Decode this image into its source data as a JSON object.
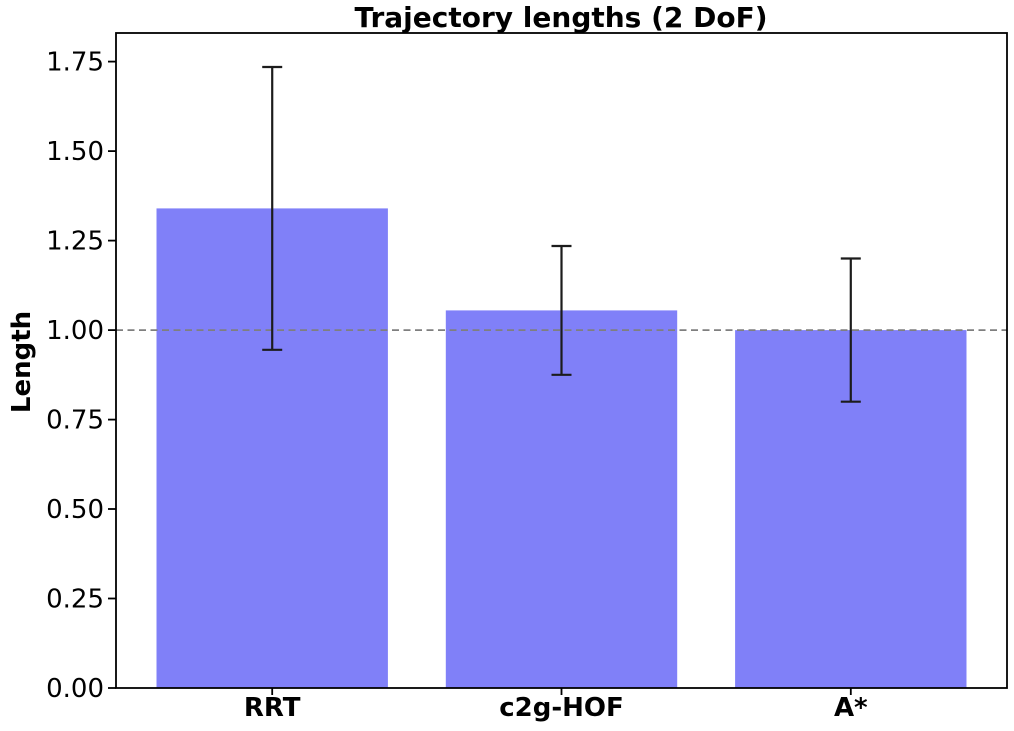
{
  "chart_data": {
    "type": "bar",
    "title": "Trajectory lengths (2 DoF)",
    "xlabel": "",
    "ylabel": "Length",
    "categories": [
      "RRT",
      "c2g-HOF",
      "A*"
    ],
    "values": [
      1.34,
      1.055,
      1.0
    ],
    "errors": [
      0.395,
      0.18,
      0.2
    ],
    "yticks": [
      0,
      0.25,
      0.5,
      0.75,
      1.0,
      1.25,
      1.5,
      1.75
    ],
    "ytick_labels": [
      "0.00",
      "0.25",
      "0.50",
      "0.75",
      "1.00",
      "1.25",
      "1.50",
      "1.75"
    ],
    "ylim": [
      0,
      1.83
    ],
    "reference_line": {
      "y": 1.0,
      "style": "dashed",
      "color": "#7f7f7f"
    },
    "colors": {
      "bar": "#8080F8",
      "error_bar": "#1c1c1c",
      "axis": "#000000",
      "text": "#000000"
    },
    "bar_width_fraction": 0.8,
    "grid": false,
    "legend": null
  }
}
